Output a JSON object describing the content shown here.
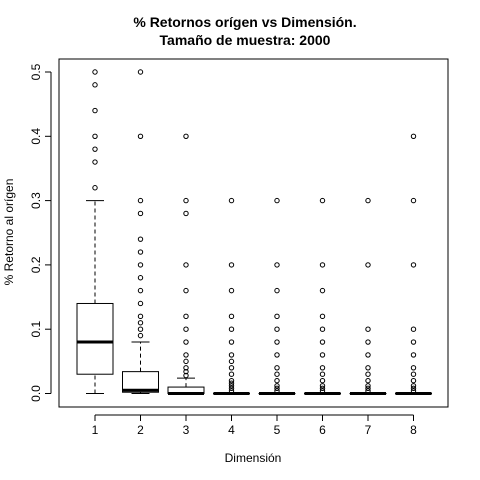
{
  "chart_data": {
    "type": "box",
    "title_line1": "% Retornos orígen vs Dimensión.",
    "title_line2": "Tamaño de muestra:  2000",
    "xlabel": "Dimensión",
    "ylabel": "% Retorno al orígen",
    "ylim": [
      -0.02,
      0.52
    ],
    "y_ticks": [
      0.0,
      0.1,
      0.2,
      0.3,
      0.4,
      0.5
    ],
    "y_tick_labels": [
      "0.0",
      "0.1",
      "0.2",
      "0.3",
      "0.4",
      "0.5"
    ],
    "categories": [
      "1",
      "2",
      "3",
      "4",
      "5",
      "6",
      "7",
      "8"
    ],
    "boxes": [
      {
        "whisker_low": 0.0,
        "q1": 0.03,
        "median": 0.08,
        "q3": 0.14,
        "whisker_high": 0.3,
        "outliers": [
          0.32,
          0.36,
          0.38,
          0.4,
          0.44,
          0.48,
          0.5
        ]
      },
      {
        "whisker_low": 0.0,
        "q1": 0.002,
        "median": 0.005,
        "q3": 0.034,
        "whisker_high": 0.08,
        "outliers": [
          0.09,
          0.1,
          0.11,
          0.12,
          0.14,
          0.16,
          0.18,
          0.2,
          0.22,
          0.24,
          0.28,
          0.3,
          0.4,
          0.5
        ]
      },
      {
        "whisker_low": 0.0,
        "q1": 0.0,
        "median": 0.0,
        "q3": 0.01,
        "whisker_high": 0.024,
        "outliers": [
          0.028,
          0.034,
          0.04,
          0.05,
          0.06,
          0.08,
          0.1,
          0.12,
          0.16,
          0.2,
          0.28,
          0.3,
          0.4
        ]
      },
      {
        "whisker_low": 0.0,
        "q1": 0.0,
        "median": 0.0,
        "q3": 0.0,
        "whisker_high": 0.0,
        "outliers": [
          0.004,
          0.008,
          0.012,
          0.016,
          0.02,
          0.03,
          0.04,
          0.05,
          0.06,
          0.08,
          0.1,
          0.12,
          0.16,
          0.2,
          0.3
        ]
      },
      {
        "whisker_low": 0.0,
        "q1": 0.0,
        "median": 0.0,
        "q3": 0.0,
        "whisker_high": 0.0,
        "outliers": [
          0.004,
          0.008,
          0.012,
          0.02,
          0.03,
          0.04,
          0.06,
          0.08,
          0.1,
          0.12,
          0.16,
          0.2,
          0.3
        ]
      },
      {
        "whisker_low": 0.0,
        "q1": 0.0,
        "median": 0.0,
        "q3": 0.0,
        "whisker_high": 0.0,
        "outliers": [
          0.004,
          0.008,
          0.012,
          0.02,
          0.03,
          0.04,
          0.06,
          0.08,
          0.1,
          0.12,
          0.16,
          0.2,
          0.3
        ]
      },
      {
        "whisker_low": 0.0,
        "q1": 0.0,
        "median": 0.0,
        "q3": 0.0,
        "whisker_high": 0.0,
        "outliers": [
          0.004,
          0.008,
          0.012,
          0.02,
          0.03,
          0.04,
          0.06,
          0.08,
          0.1,
          0.2,
          0.3
        ]
      },
      {
        "whisker_low": 0.0,
        "q1": 0.0,
        "median": 0.0,
        "q3": 0.0,
        "whisker_high": 0.0,
        "outliers": [
          0.004,
          0.008,
          0.012,
          0.02,
          0.03,
          0.04,
          0.06,
          0.08,
          0.1,
          0.2,
          0.3,
          0.4
        ]
      }
    ],
    "grid": false,
    "legend": "none"
  }
}
